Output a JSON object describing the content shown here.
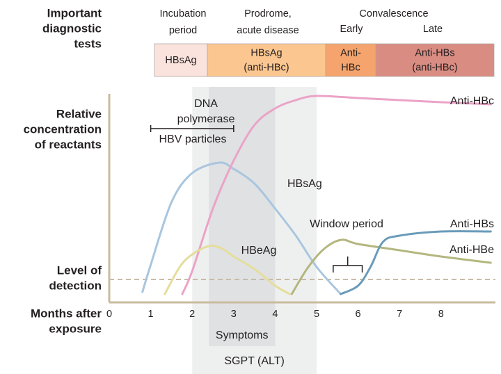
{
  "chart_data": {
    "type": "line",
    "row_labels": [
      [
        "Important",
        "diagnostic",
        "tests"
      ],
      [
        "Relative",
        "concentration",
        "of reactants"
      ],
      [
        "Level of",
        "detection"
      ],
      [
        "Months after",
        "exposure"
      ]
    ],
    "phases": [
      [
        "Incubation",
        "period"
      ],
      [
        "Prodrome,",
        "acute disease"
      ],
      [
        "Convalescence"
      ],
      [
        "Early"
      ],
      [
        "Late"
      ]
    ],
    "tests": [
      {
        "lines": [
          "HBsAg"
        ],
        "color": "#fbe3dd"
      },
      {
        "lines": [
          "HBsAg",
          "(anti-HBc)"
        ],
        "color": "#fbc690"
      },
      {
        "lines": [
          "Anti-",
          "HBc"
        ],
        "color": "#f4a46c"
      },
      {
        "lines": [
          "Anti-HBs",
          "(anti-HBc)"
        ],
        "color": "#d98c82"
      }
    ],
    "xlim": [
      0,
      9.2
    ],
    "ylim": [
      0,
      100
    ],
    "xticks": [
      0,
      1,
      2,
      3,
      4,
      5,
      6,
      7,
      8
    ],
    "detection_level": 11,
    "bands": [
      {
        "label": "SGPT (ALT)",
        "x": [
          2,
          5
        ],
        "color": "#eef0ef"
      },
      {
        "label": "Symptoms",
        "x": [
          2.4,
          4
        ],
        "color": "#dfe1e3"
      }
    ],
    "annotations": [
      {
        "lines": [
          "DNA",
          "polymerase"
        ]
      },
      {
        "lines": [
          "HBV particles"
        ],
        "x": [
          1,
          3
        ]
      },
      {
        "lines": [
          "Window period"
        ],
        "x": [
          5.4,
          6.1
        ]
      }
    ],
    "series": [
      {
        "name": "HBsAg",
        "color": "#a9c6de",
        "x": [
          0.8,
          1,
          1.5,
          2,
          2.65,
          3,
          3.5,
          4,
          4.5,
          5,
          5.58
        ],
        "values": [
          5,
          18,
          48,
          62,
          67,
          64,
          57,
          45,
          32,
          17,
          4
        ]
      },
      {
        "name": "Anti-HBc",
        "color": "#eba3c7",
        "x": [
          1.76,
          2,
          2.5,
          3,
          3.5,
          4,
          4.5,
          5,
          6,
          7,
          8,
          9.2
        ],
        "values": [
          4,
          15,
          45,
          68,
          85,
          93,
          97,
          99,
          98,
          97,
          96,
          95
        ]
      },
      {
        "name": "HBeAg",
        "color": "#e5dd9c",
        "x": [
          1.34,
          1.7,
          2,
          2.4,
          2.7,
          3,
          3.5,
          4,
          4.35
        ],
        "values": [
          4,
          17,
          23,
          27,
          26,
          22,
          16,
          8,
          4
        ]
      },
      {
        "name": "Anti-HBe",
        "color": "#b4b67f",
        "x": [
          4.4,
          4.8,
          5.2,
          5.6,
          6,
          7,
          8,
          9.2
        ],
        "values": [
          4,
          17,
          26,
          30,
          28,
          25,
          22,
          19
        ]
      },
      {
        "name": "Anti-HBs",
        "color": "#6a9bb9",
        "x": [
          5.58,
          6,
          6.3,
          6.6,
          7,
          8,
          9.2
        ],
        "values": [
          4,
          8,
          17,
          29,
          32,
          34,
          34
        ]
      }
    ]
  }
}
